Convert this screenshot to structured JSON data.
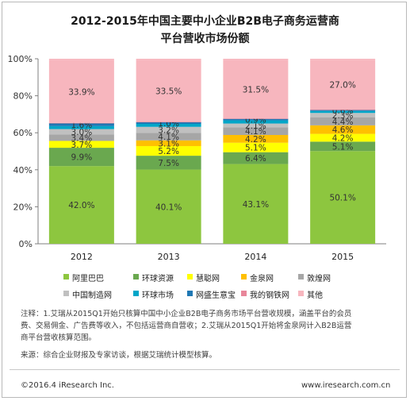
{
  "chart_data": {
    "type": "bar",
    "stacked": true,
    "title_line1": "2012-2015年中国主要中小企业B2B电子商务运营商",
    "title_line2": "平台营收市场份额",
    "categories": [
      "2012",
      "2013",
      "2014",
      "2015"
    ],
    "ylim": [
      0,
      100
    ],
    "yticks": [
      "0%",
      "20%",
      "40%",
      "60%",
      "80%",
      "100%"
    ],
    "grid": false,
    "legend_position": "bottom",
    "series": [
      {
        "name": "阿里巴巴",
        "color": "#8dc63f",
        "values": [
          42.0,
          40.1,
          43.1,
          50.1
        ],
        "labels": [
          "42.0%",
          "40.1%",
          "43.1%",
          "50.1%"
        ]
      },
      {
        "name": "环球资源",
        "color": "#6aa84f",
        "values": [
          9.9,
          7.5,
          6.4,
          5.1
        ],
        "labels": [
          "9.9%",
          "7.5%",
          "6.4%",
          "5.1%"
        ]
      },
      {
        "name": "慧聪网",
        "color": "#ffff00",
        "values": [
          3.7,
          5.2,
          5.1,
          4.2
        ],
        "labels": [
          "3.7%",
          "5.2%",
          "5.1%",
          "4.2%"
        ]
      },
      {
        "name": "金泉网",
        "color": "#ffc000",
        "values": [
          0,
          3.1,
          4.2,
          4.6
        ],
        "labels": [
          "",
          "3.1%",
          "4.2%",
          "4.6%"
        ]
      },
      {
        "name": "敦煌网",
        "color": "#a6a6a6",
        "values": [
          3.4,
          4.1,
          4.1,
          4.4
        ],
        "labels": [
          "3.4%",
          "4.1%",
          "4.1%",
          "4.4%"
        ]
      },
      {
        "name": "中国制造网",
        "color": "#c0c0c0",
        "values": [
          3.0,
          3.2,
          2.1,
          2.3
        ],
        "labels": [
          "3.0%",
          "3.2%",
          "2.1%",
          "2.3%"
        ]
      },
      {
        "name": "环球市场",
        "color": "#00a6c8",
        "values": [
          1.6,
          1.6,
          1.7,
          1.1
        ],
        "labels": [
          "",
          "",
          "",
          ""
        ]
      },
      {
        "name": "网盛生意宝",
        "color": "#1f78b4",
        "values": [
          1.6,
          1.0,
          0.9,
          0.6
        ],
        "labels": [
          "1.6%",
          "1.0%",
          "0.9%",
          "0.6%"
        ]
      },
      {
        "name": "我的钢铁网",
        "color": "#e8869a",
        "values": [
          0.1,
          0.1,
          0.1,
          0.1
        ],
        "labels": [
          "",
          "",
          "",
          ""
        ]
      },
      {
        "name": "其他",
        "color": "#f7b6be",
        "values": [
          33.9,
          33.5,
          31.5,
          27.0
        ],
        "labels": [
          "33.9%",
          "33.5%",
          "31.5%",
          "27.0%"
        ]
      }
    ]
  },
  "notes": {
    "line1": "注释：1.艾瑞从2015Q1开始只核算中国中小企业B2B电子商务市场平台营收规模，涵盖平台的会员",
    "line2": "费、交易佣金、广告费等收入，不包括运营商自营收；2.艾瑞从2015Q1开始将金泉网计入B2B运营",
    "line3": "商平台营收核算范围。",
    "source": "来源：综合企业财报及专家访谈，根据艾瑞统计模型核算。"
  },
  "footer": {
    "left": "©2016.4 iResearch Inc.",
    "right": "www.iresearch.com.cn"
  }
}
